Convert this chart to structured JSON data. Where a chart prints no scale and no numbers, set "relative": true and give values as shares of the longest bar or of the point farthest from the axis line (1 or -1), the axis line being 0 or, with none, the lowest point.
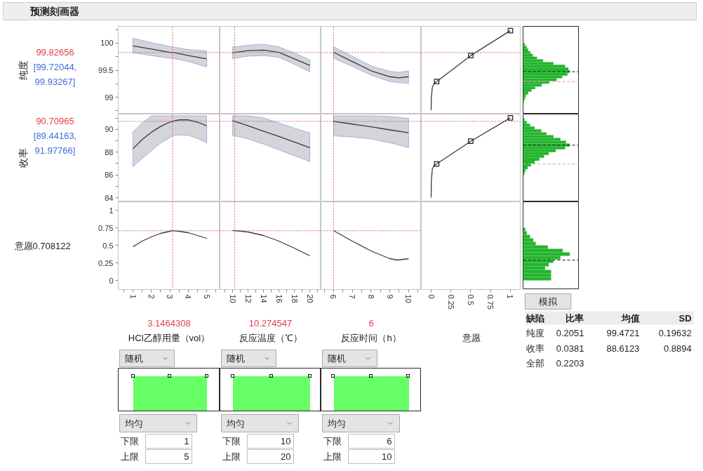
{
  "chart_data": [
    {
      "type": "other",
      "title": "预测刻画器"
    },
    {
      "type": "line",
      "ylabel": "纯度",
      "x": [
        1,
        2,
        3,
        3.15,
        4,
        5
      ],
      "series": [
        {
          "color": "#3a3a3a",
          "values": [
            99.95,
            99.89,
            99.83,
            99.83,
            99.77,
            99.71
          ],
          "lower": [
            99.82,
            99.77,
            99.72,
            99.72,
            99.66,
            99.56
          ],
          "upper": [
            100.09,
            100.01,
            99.94,
            99.93,
            99.88,
            99.86
          ]
        }
      ],
      "xlim": [
        0.2,
        5.72
      ],
      "ylim": [
        98.69,
        100.31
      ],
      "yticks": [
        {
          "value": 98.75,
          "label": null
        },
        99,
        {
          "value": 99.25,
          "label": null
        },
        99.5,
        {
          "value": 99.75,
          "label": null
        },
        100,
        {
          "value": 100.25,
          "label": null
        }
      ],
      "tick_labels": "y",
      "ref_lines": [
        {
          "axis": "x",
          "value": 3.1464308,
          "color": "#d8606c",
          "line_style": "dotted"
        },
        {
          "axis": "y",
          "value": 99.82656,
          "label": "99.82656",
          "color": "#d8606c",
          "line_style": "dotted"
        }
      ],
      "annotations": [
        "[99.72044, 99.93267]"
      ]
    },
    {
      "type": "line",
      "x": [
        10,
        10.27,
        12,
        14,
        16,
        18,
        20
      ],
      "series": [
        {
          "color": "#3a3a3a",
          "values": [
            99.82,
            99.83,
            99.86,
            99.87,
            99.83,
            99.71,
            99.59
          ],
          "lower": [
            99.71,
            99.72,
            99.76,
            99.77,
            99.74,
            99.61,
            99.47
          ],
          "upper": [
            99.93,
            99.93,
            99.96,
            99.98,
            99.93,
            99.82,
            99.69
          ]
        }
      ],
      "xlim": [
        8.36,
        21.45
      ],
      "ylim": [
        98.69,
        100.31
      ],
      "tick_labels": false,
      "ref_lines": [
        {
          "axis": "x",
          "value": 10.274547,
          "color": "#d8606c",
          "line_style": "dotted"
        },
        {
          "axis": "y",
          "value": 99.82656,
          "color": "#d8606c",
          "line_style": "dotted"
        }
      ]
    },
    {
      "type": "line",
      "x": [
        6,
        7,
        8,
        9,
        9.5,
        10
      ],
      "series": [
        {
          "color": "#3a3a3a",
          "values": [
            99.83,
            99.66,
            99.49,
            99.38,
            99.36,
            99.38
          ],
          "lower": [
            99.72,
            99.57,
            99.41,
            99.29,
            99.27,
            99.26
          ],
          "upper": [
            99.93,
            99.76,
            99.58,
            99.48,
            99.46,
            99.49
          ]
        }
      ],
      "xlim": [
        5.33,
        10.68
      ],
      "ylim": [
        98.69,
        100.31
      ],
      "tick_labels": false,
      "ref_lines": [
        {
          "axis": "x",
          "value": 6,
          "color": "#d8606c",
          "line_style": "dotted"
        },
        {
          "axis": "y",
          "value": 99.82656,
          "color": "#d8606c",
          "line_style": "dotted"
        }
      ]
    },
    {
      "type": "line",
      "series": [
        {
          "type": "line",
          "color": "#3a3a3a",
          "x": [
            0,
            0.003,
            0.015,
            0.04,
            0.07,
            0.5,
            1
          ],
          "values": [
            98.76,
            99.0,
            99.18,
            99.26,
            99.29,
            99.77,
            100.23
          ]
        },
        {
          "type": "scatter",
          "marker": "square",
          "color": "#1a1a1a",
          "x": [
            0.07,
            0.5,
            1
          ],
          "values": [
            99.29,
            99.77,
            100.23
          ]
        }
      ],
      "xlim": [
        -0.124,
        1.133
      ],
      "ylim": [
        98.69,
        100.31
      ],
      "tick_labels": false,
      "ref_lines": [
        {
          "axis": "y",
          "value": 99.82656,
          "color": "#d8606c",
          "line_style": "dotted"
        }
      ]
    },
    {
      "type": "bar",
      "orientation": "horizontal",
      "relative": true,
      "color": "#25b52f",
      "x": [
        98.925,
        98.975,
        99.025,
        99.075,
        99.125,
        99.175,
        99.225,
        99.275,
        99.325,
        99.375,
        99.425,
        99.475,
        99.525,
        99.575,
        99.625,
        99.675,
        99.725,
        99.775,
        99.825,
        99.875,
        99.925,
        99.975
      ],
      "values": [
        0.02,
        0.04,
        0.06,
        0.11,
        0.18,
        0.26,
        0.4,
        0.56,
        0.72,
        0.84,
        0.95,
        1.0,
        0.97,
        0.9,
        0.65,
        0.43,
        0.3,
        0.21,
        0.16,
        0.11,
        0.08,
        0.04
      ],
      "ylim": [
        98.69,
        100.31
      ],
      "tick_labels": false,
      "ref_lines": [
        {
          "axis": "y",
          "value": 99.4721,
          "color": "#1a1a1a",
          "line_style": "dashed"
        },
        {
          "axis": "y",
          "value": 99.29,
          "color": "#e48c8c",
          "line_style": "dashed"
        }
      ]
    },
    {
      "type": "line",
      "ylabel": "收率",
      "x": [
        1,
        1.5,
        2,
        2.5,
        3,
        3.15,
        3.5,
        4,
        4.5,
        5
      ],
      "series": [
        {
          "color": "#3a3a3a",
          "values": [
            88.3,
            89.11,
            89.75,
            90.26,
            90.64,
            90.71,
            90.84,
            90.84,
            90.64,
            90.32
          ],
          "lower": [
            86.72,
            87.44,
            88.12,
            88.8,
            89.28,
            89.44,
            89.51,
            89.48,
            89.21,
            88.82
          ],
          "upper": [
            89.79,
            90.57,
            91.2,
            91.2,
            91.2,
            91.2,
            91.2,
            91.2,
            91.2,
            91.2
          ]
        }
      ],
      "xlim": [
        0.2,
        5.72
      ],
      "ylim": [
        83.63,
        91.35
      ],
      "yticks": [
        84,
        {
          "value": 85,
          "label": null
        },
        86,
        {
          "value": 87,
          "label": null
        },
        88,
        {
          "value": 89,
          "label": null
        },
        90,
        {
          "value": 91,
          "label": null
        }
      ],
      "tick_labels": "y",
      "ref_lines": [
        {
          "axis": "x",
          "value": 3.1464308,
          "color": "#d8606c",
          "line_style": "dotted"
        },
        {
          "axis": "y",
          "value": 90.70965,
          "label": "90.70965",
          "color": "#d8606c",
          "line_style": "dotted"
        }
      ],
      "annotations": [
        "[89.44163, 91.97766]"
      ]
    },
    {
      "type": "line",
      "x": [
        10,
        10.27,
        12,
        14,
        16,
        18,
        20
      ],
      "series": [
        {
          "color": "#3a3a3a",
          "values": [
            90.77,
            90.71,
            90.33,
            89.85,
            89.38,
            88.89,
            88.39
          ],
          "lower": [
            89.47,
            89.44,
            89.17,
            88.71,
            88.2,
            87.69,
            87.17
          ],
          "upper": [
            91.2,
            91.2,
            91.2,
            91.02,
            90.56,
            90.11,
            89.7
          ]
        }
      ],
      "xlim": [
        8.36,
        21.45
      ],
      "ylim": [
        83.63,
        91.35
      ],
      "tick_labels": false,
      "ref_lines": [
        {
          "axis": "x",
          "value": 10.274547,
          "color": "#d8606c",
          "line_style": "dotted"
        },
        {
          "axis": "y",
          "value": 90.70965,
          "color": "#d8606c",
          "line_style": "dotted"
        }
      ]
    },
    {
      "type": "line",
      "x": [
        6,
        7,
        8,
        9,
        10
      ],
      "series": [
        {
          "color": "#3a3a3a",
          "values": [
            90.71,
            90.47,
            90.23,
            89.96,
            89.7
          ],
          "lower": [
            89.44,
            89.32,
            89.17,
            88.82,
            88.4
          ],
          "upper": [
            91.2,
            91.2,
            91.2,
            91.14,
            90.97
          ]
        }
      ],
      "xlim": [
        5.33,
        10.68
      ],
      "ylim": [
        83.63,
        91.35
      ],
      "tick_labels": false,
      "ref_lines": [
        {
          "axis": "x",
          "value": 6,
          "color": "#d8606c",
          "line_style": "dotted"
        },
        {
          "axis": "y",
          "value": 90.70965,
          "color": "#d8606c",
          "line_style": "dotted"
        }
      ]
    },
    {
      "type": "line",
      "series": [
        {
          "type": "line",
          "color": "#3a3a3a",
          "x": [
            0,
            0.003,
            0.015,
            0.04,
            0.07,
            0.5,
            1
          ],
          "values": [
            84.0,
            85.5,
            86.5,
            86.85,
            86.96,
            88.96,
            91.02
          ]
        },
        {
          "type": "scatter",
          "marker": "square",
          "color": "#1a1a1a",
          "x": [
            0.07,
            0.5,
            1
          ],
          "values": [
            86.96,
            88.96,
            91.02
          ]
        }
      ],
      "xlim": [
        -0.124,
        1.133
      ],
      "ylim": [
        83.63,
        91.35
      ],
      "tick_labels": false,
      "ref_lines": [
        {
          "axis": "y",
          "value": 90.70965,
          "color": "#d8606c",
          "line_style": "dotted"
        }
      ]
    },
    {
      "type": "bar",
      "orientation": "horizontal",
      "relative": true,
      "color": "#25b52f",
      "x": [
        86.125,
        86.375,
        86.625,
        86.875,
        87.125,
        87.375,
        87.625,
        87.875,
        88.125,
        88.375,
        88.625,
        88.875,
        89.125,
        89.375,
        89.625,
        89.875,
        90.125,
        90.375,
        90.625,
        90.875
      ],
      "values": [
        0.03,
        0.05,
        0.1,
        0.17,
        0.25,
        0.35,
        0.45,
        0.55,
        0.7,
        0.9,
        1.0,
        0.92,
        0.8,
        0.65,
        0.5,
        0.39,
        0.25,
        0.15,
        0.08,
        0.03
      ],
      "ylim": [
        83.63,
        91.35
      ],
      "tick_labels": false,
      "ref_lines": [
        {
          "axis": "y",
          "value": 88.6123,
          "color": "#1a1a1a",
          "line_style": "dashed"
        },
        {
          "axis": "y",
          "value": 86.96,
          "color": "#9cbf9c",
          "line_style": "dashed"
        }
      ]
    },
    {
      "type": "line",
      "ylabel": "意愿",
      "xlabel": "HCl乙醇用量（vol）",
      "x": [
        1,
        1.5,
        2,
        2.5,
        3,
        3.15,
        3.5,
        4,
        4.5,
        5
      ],
      "series": [
        {
          "color": "#3a3a3a",
          "values": [
            0.48,
            0.56,
            0.62,
            0.67,
            0.7,
            0.71,
            0.7,
            0.68,
            0.64,
            0.6
          ]
        }
      ],
      "xlim": [
        0.2,
        5.72
      ],
      "ylim": [
        -0.13,
        1.12
      ],
      "xticks": [
        {
          "value": 0.5,
          "label": null
        },
        1,
        {
          "value": 1.5,
          "label": null
        },
        2,
        {
          "value": 2.5,
          "label": null
        },
        3,
        {
          "value": 3.5,
          "label": null
        },
        4,
        {
          "value": 4.5,
          "label": null
        },
        5,
        {
          "value": 5.5,
          "label": null
        }
      ],
      "yticks": [
        0,
        0.25,
        0.5,
        0.75,
        1
      ],
      "ref_lines": [
        {
          "axis": "x",
          "value": 3.1464308,
          "label": "3.1464308",
          "color": "#d8606c",
          "line_style": "dotted"
        },
        {
          "axis": "y",
          "value": 0.708122,
          "color": "#d8606c",
          "line_style": "dotted"
        }
      ],
      "annotations": [
        "0.708122"
      ]
    },
    {
      "type": "line",
      "xlabel": "反应温度（℃）",
      "x": [
        10,
        10.27,
        12,
        14,
        16,
        18,
        20
      ],
      "series": [
        {
          "color": "#3a3a3a",
          "values": [
            0.71,
            0.71,
            0.69,
            0.64,
            0.56,
            0.46,
            0.35
          ]
        }
      ],
      "xlim": [
        8.36,
        21.45
      ],
      "ylim": [
        -0.13,
        1.12
      ],
      "xticks": [
        {
          "value": 9,
          "label": null
        },
        10,
        {
          "value": 11,
          "label": null
        },
        12,
        {
          "value": 13,
          "label": null
        },
        14,
        {
          "value": 15,
          "label": null
        },
        16,
        {
          "value": 17,
          "label": null
        },
        18,
        {
          "value": 19,
          "label": null
        },
        20,
        {
          "value": 21,
          "label": null
        }
      ],
      "tick_labels": "x",
      "ref_lines": [
        {
          "axis": "x",
          "value": 10.274547,
          "label": "10.274547",
          "color": "#d8606c",
          "line_style": "dotted"
        },
        {
          "axis": "y",
          "value": 0.708122,
          "color": "#d8606c",
          "line_style": "dotted"
        }
      ]
    },
    {
      "type": "line",
      "xlabel": "反应时间（h）",
      "x": [
        6,
        7,
        8,
        9,
        9.4,
        10
      ],
      "series": [
        {
          "color": "#3a3a3a",
          "values": [
            0.71,
            0.56,
            0.42,
            0.31,
            0.29,
            0.31
          ]
        }
      ],
      "xlim": [
        5.33,
        10.68
      ],
      "ylim": [
        -0.13,
        1.12
      ],
      "xticks": [
        {
          "value": 5.5,
          "label": null
        },
        6,
        {
          "value": 6.5,
          "label": null
        },
        7,
        {
          "value": 7.5,
          "label": null
        },
        8,
        {
          "value": 8.5,
          "label": null
        },
        9,
        {
          "value": 9.5,
          "label": null
        },
        10,
        {
          "value": 10.5,
          "label": null
        }
      ],
      "tick_labels": "x",
      "ref_lines": [
        {
          "axis": "x",
          "value": 6,
          "label": "6",
          "color": "#d8606c",
          "line_style": "dotted"
        },
        {
          "axis": "y",
          "value": 0.708122,
          "color": "#d8606c",
          "line_style": "dotted"
        }
      ]
    },
    {
      "type": "line",
      "xlabel": "意愿",
      "xlim": [
        -0.124,
        1.133
      ],
      "ylim": [
        -0.13,
        1.12
      ],
      "xticks": [
        0,
        0.25,
        0.5,
        0.75,
        1
      ],
      "tick_labels": "x"
    },
    {
      "type": "bar",
      "orientation": "horizontal",
      "relative": true,
      "color": "#25b52f",
      "x": [
        0.025,
        0.075,
        0.125,
        0.175,
        0.225,
        0.275,
        0.325,
        0.375,
        0.425,
        0.475,
        0.525,
        0.575,
        0.625,
        0.675,
        0.725
      ],
      "values": [
        0.6,
        0.6,
        0.6,
        0.47,
        0.55,
        0.65,
        0.8,
        1.0,
        0.85,
        0.53,
        0.27,
        0.22,
        0.15,
        0.08,
        0.05
      ],
      "ylim": [
        -0.13,
        1.12
      ],
      "tick_labels": false,
      "ref_lines": [
        {
          "axis": "y",
          "value": 0.29,
          "color": "#1a1a1a",
          "line_style": "dashed"
        }
      ]
    },
    {
      "type": "other",
      "annotations": [
        "模拟",
        "缺陷",
        "比率",
        "均值",
        "SD",
        "纯度",
        "0.2051",
        "99.4721",
        "0.19632",
        "收率",
        "0.0381",
        "88.6123",
        "0.8894",
        "全部",
        "0.2203"
      ]
    },
    {
      "type": "other",
      "annotations": [
        "随机",
        "均匀",
        "下限",
        "1",
        "上限",
        "5"
      ]
    },
    {
      "type": "other",
      "annotations": [
        "随机",
        "均匀",
        "下限",
        "10",
        "上限",
        "20"
      ]
    },
    {
      "type": "other",
      "annotations": [
        "随机",
        "均匀",
        "下限",
        "6",
        "上限",
        "10"
      ]
    }
  ]
}
